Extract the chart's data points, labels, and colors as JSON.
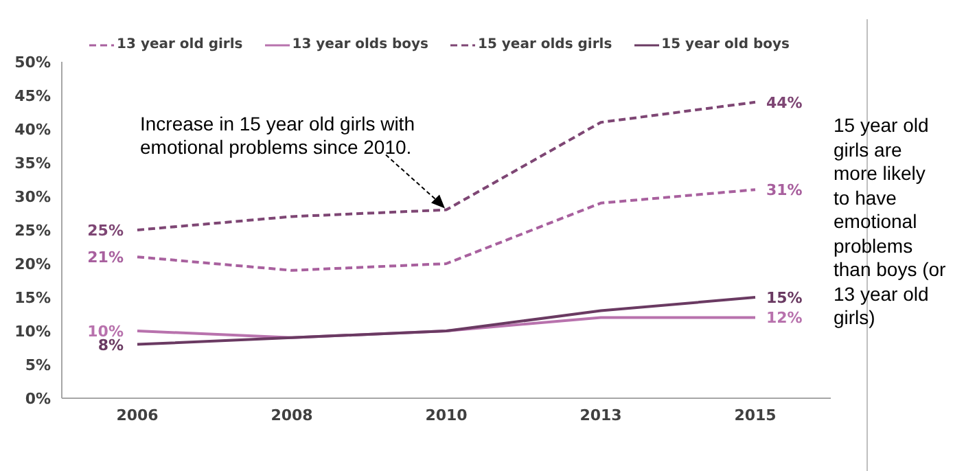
{
  "chart_data": {
    "type": "line",
    "categories": [
      "2006",
      "2008",
      "2010",
      "2013",
      "2015"
    ],
    "series": [
      {
        "name": "13 year old girls",
        "color": "#a8609e",
        "line_style": "dashed",
        "values": [
          21,
          19,
          20,
          29,
          31
        ],
        "value_labels": [
          "21%",
          null,
          null,
          null,
          "31%"
        ]
      },
      {
        "name": "13 year olds boys",
        "color": "#b872ad",
        "line_style": "solid",
        "values": [
          10,
          9,
          10,
          12,
          12
        ],
        "value_labels": [
          "10%",
          null,
          null,
          null,
          "12%"
        ]
      },
      {
        "name": "15 year olds girls",
        "color": "#7e4674",
        "line_style": "dashed",
        "values": [
          25,
          27,
          28,
          41,
          44
        ],
        "value_labels": [
          "25%",
          null,
          null,
          null,
          "44%"
        ]
      },
      {
        "name": "15 year old boys",
        "color": "#6a3a62",
        "line_style": "solid",
        "values": [
          8,
          9,
          10,
          13,
          15
        ],
        "value_labels": [
          "8%",
          null,
          null,
          null,
          "15%"
        ]
      }
    ],
    "ylim": [
      0,
      50
    ],
    "yticks": [
      {
        "value": 0,
        "label": "0%"
      },
      {
        "value": 5,
        "label": "5%"
      },
      {
        "value": 10,
        "label": "10%"
      },
      {
        "value": 15,
        "label": "15%"
      },
      {
        "value": 20,
        "label": "20%"
      },
      {
        "value": 25,
        "label": "25%"
      },
      {
        "value": 30,
        "label": "30%"
      },
      {
        "value": 35,
        "label": "35%"
      },
      {
        "value": 40,
        "label": "40%"
      },
      {
        "value": 45,
        "label": "45%"
      },
      {
        "value": 50,
        "label": "50%"
      }
    ],
    "grid": false,
    "legend": "top",
    "marker": "none",
    "annotations": [
      {
        "text": "Increase in 15 year old girls with emotional problems since 2010.",
        "x": "2010",
        "y": 28
      },
      "15 year old girls are more likely to have emotional problems than boys (or 13 year old girls)"
    ]
  }
}
